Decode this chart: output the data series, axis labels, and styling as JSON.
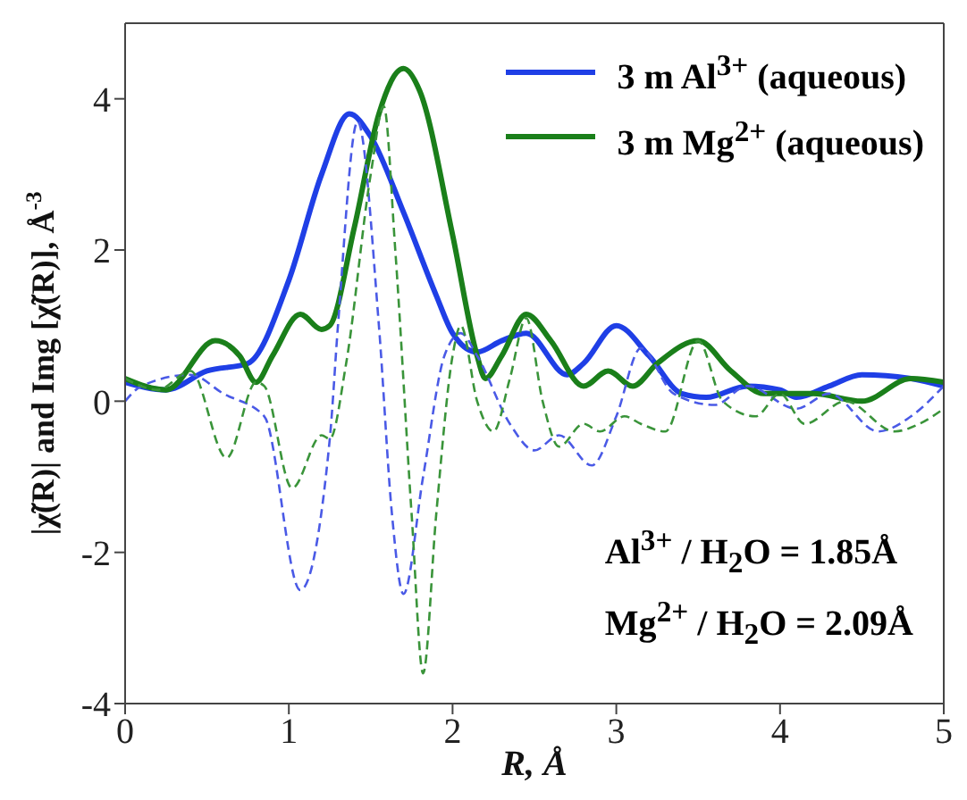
{
  "chart_data": {
    "type": "line",
    "xlabel": "R, Å",
    "ylabel": "|χ̃(R)| and Img [χ̃(R)], Å$^{-3}$",
    "xlim": [
      0,
      5
    ],
    "ylim": [
      -4,
      5
    ],
    "xticks": [
      0,
      1,
      2,
      3,
      4,
      5
    ],
    "yticks": [
      -4,
      -2,
      0,
      2,
      4
    ],
    "legend": "top right",
    "marker": "none",
    "annotations": [
      "Al$^{3+}$ / H$_{2}$O = 1.85Å",
      "Mg$^{2+}$ / H$_{2}$O = 2.09Å"
    ],
    "series": [
      {
        "name": "3 m Al$^{3+}$  (aqueous)",
        "color": "#1f3fe6",
        "line_style": "solid",
        "x": [
          0,
          0.25,
          0.5,
          0.75,
          1.0,
          1.2,
          1.37,
          1.5,
          1.7,
          1.9,
          2.0,
          2.15,
          2.3,
          2.45,
          2.7,
          2.8,
          3.0,
          3.2,
          3.4,
          3.55,
          3.8,
          4.0,
          4.1,
          4.3,
          4.5,
          4.8,
          5.0
        ],
        "values": [
          0.25,
          0.15,
          0.4,
          0.5,
          1.6,
          3.0,
          3.8,
          3.5,
          2.5,
          1.4,
          0.9,
          0.65,
          0.8,
          0.9,
          0.35,
          0.5,
          1.0,
          0.6,
          0.1,
          0.05,
          0.2,
          0.15,
          0.05,
          0.2,
          0.35,
          0.3,
          0.2
        ]
      },
      {
        "name": "3 m Mg$^{2+}$ (aqueous)",
        "color": "#1a7f1a",
        "line_style": "solid",
        "x": [
          0,
          0.25,
          0.55,
          0.7,
          0.8,
          0.9,
          1.07,
          1.2,
          1.25,
          1.4,
          1.55,
          1.7,
          1.8,
          2.0,
          2.15,
          2.2,
          2.3,
          2.45,
          2.6,
          2.8,
          2.95,
          3.1,
          3.25,
          3.5,
          3.7,
          3.9,
          4.2,
          4.5,
          4.8,
          5.0
        ],
        "values": [
          0.3,
          0.15,
          0.8,
          0.6,
          0.25,
          0.6,
          1.15,
          0.95,
          1.0,
          2.3,
          3.8,
          4.4,
          4.1,
          2.2,
          0.6,
          0.3,
          0.6,
          1.15,
          0.8,
          0.2,
          0.4,
          0.2,
          0.5,
          0.8,
          0.4,
          0.1,
          0.1,
          0.0,
          0.3,
          0.25
        ]
      },
      {
        "color": "#4a5ae6",
        "line_style": "dashed",
        "x": [
          0,
          0.1,
          0.4,
          0.6,
          0.85,
          1.07,
          1.25,
          1.3,
          1.42,
          1.55,
          1.63,
          1.7,
          1.82,
          1.95,
          2.05,
          2.15,
          2.35,
          2.5,
          2.65,
          2.85,
          3.0,
          3.15,
          3.35,
          3.6,
          3.8,
          4.1,
          4.3,
          4.6,
          4.8,
          5.0
        ],
        "values": [
          0.0,
          0.2,
          0.35,
          0.1,
          -0.2,
          -2.5,
          -0.5,
          1.0,
          3.7,
          1.0,
          -1.5,
          -2.55,
          -1.0,
          0.6,
          0.9,
          0.6,
          -0.3,
          -0.65,
          -0.45,
          -0.85,
          -0.2,
          0.7,
          0.1,
          -0.05,
          0.2,
          -0.1,
          0.1,
          -0.4,
          -0.2,
          0.2
        ]
      },
      {
        "color": "#3a943a",
        "line_style": "dashed",
        "x": [
          0,
          0.2,
          0.4,
          0.62,
          0.8,
          0.85,
          1.02,
          1.2,
          1.25,
          1.35,
          1.5,
          1.58,
          1.65,
          1.75,
          1.82,
          1.9,
          2.0,
          2.05,
          2.15,
          2.25,
          2.35,
          2.45,
          2.55,
          2.65,
          2.8,
          2.9,
          3.05,
          3.15,
          3.3,
          3.5,
          3.65,
          3.85,
          4.0,
          4.15,
          4.4,
          4.7,
          4.85,
          5.0
        ],
        "values": [
          0.3,
          0.15,
          0.4,
          -0.75,
          0.25,
          0.2,
          -1.15,
          -0.45,
          -0.5,
          0.5,
          3.0,
          3.9,
          2.0,
          -1.5,
          -3.6,
          -1.5,
          0.6,
          1.0,
          0.0,
          -0.4,
          0.3,
          1.1,
          0.0,
          -0.6,
          -0.3,
          -0.4,
          -0.2,
          -0.3,
          -0.4,
          0.8,
          0.0,
          -0.2,
          0.1,
          -0.3,
          0.0,
          -0.4,
          -0.3,
          -0.1
        ]
      }
    ]
  }
}
